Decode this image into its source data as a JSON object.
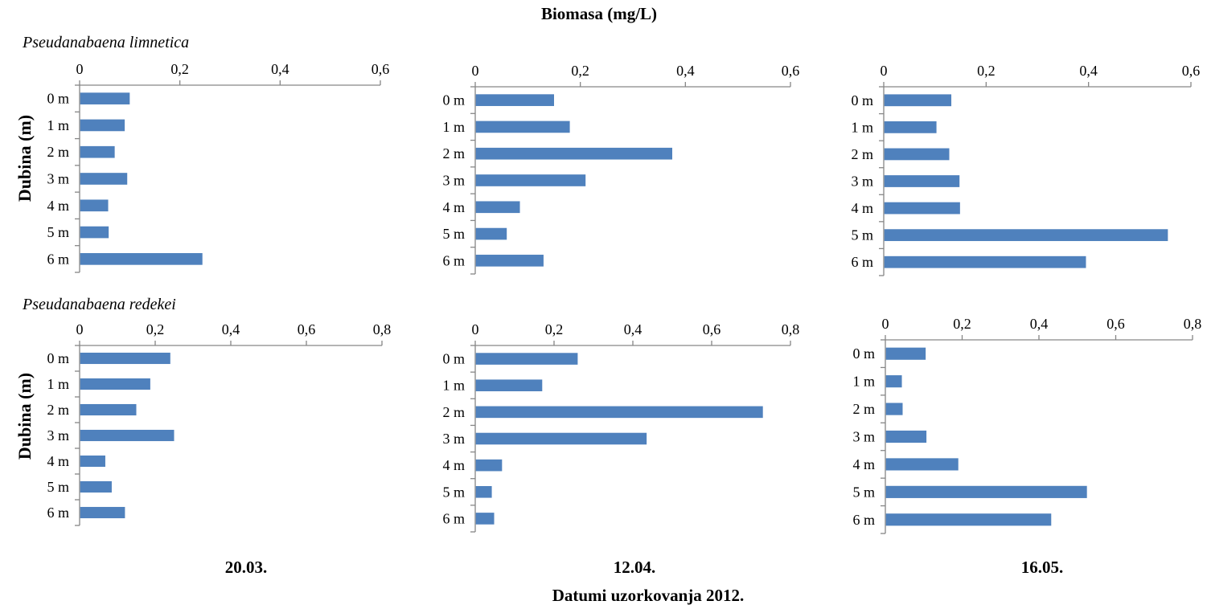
{
  "figure": {
    "top_title": "Biomasa (mg/L)",
    "y_axis_title": "Dubina (m)",
    "bottom_title": "Datumi uzorkovanja 2012.",
    "bar_color": "#4F81BD",
    "axis_color": "#868686"
  },
  "rows": [
    {
      "species": "Pseudanabaena limnetica"
    },
    {
      "species": "Pseudanabaena redekei"
    }
  ],
  "dates": [
    "20.03.",
    "12.04.",
    "16.05."
  ],
  "chart_data": [
    {
      "type": "bar",
      "orientation": "horizontal",
      "row": 0,
      "col": 0,
      "categories": [
        "0 m",
        "1 m",
        "2 m",
        "3 m",
        "4 m",
        "5 m",
        "6 m"
      ],
      "values": [
        0.1,
        0.09,
        0.07,
        0.095,
        0.057,
        0.058,
        0.245
      ],
      "xlim": [
        0,
        0.6
      ],
      "ticks": [
        "0",
        "0,2",
        "0,4",
        "0,6"
      ]
    },
    {
      "type": "bar",
      "orientation": "horizontal",
      "row": 0,
      "col": 1,
      "categories": [
        "0 m",
        "1 m",
        "2 m",
        "3 m",
        "4 m",
        "5 m",
        "6 m"
      ],
      "values": [
        0.15,
        0.18,
        0.375,
        0.21,
        0.085,
        0.06,
        0.13
      ],
      "xlim": [
        0,
        0.6
      ],
      "ticks": [
        "0",
        "0,2",
        "0,4",
        "0,6"
      ]
    },
    {
      "type": "bar",
      "orientation": "horizontal",
      "row": 0,
      "col": 2,
      "categories": [
        "0 m",
        "1 m",
        "2 m",
        "3 m",
        "4 m",
        "5 m",
        "6 m"
      ],
      "values": [
        0.132,
        0.103,
        0.128,
        0.148,
        0.149,
        0.555,
        0.395
      ],
      "xlim": [
        0,
        0.6
      ],
      "ticks": [
        "0",
        "0,2",
        "0,4",
        "0,6"
      ]
    },
    {
      "type": "bar",
      "orientation": "horizontal",
      "row": 1,
      "col": 0,
      "categories": [
        "0 m",
        "1 m",
        "2 m",
        "3 m",
        "4 m",
        "5 m",
        "6 m"
      ],
      "values": [
        0.24,
        0.187,
        0.15,
        0.25,
        0.068,
        0.085,
        0.12
      ],
      "xlim": [
        0,
        0.8
      ],
      "ticks": [
        "0",
        "0,2",
        "0,4",
        "0,6",
        "0,8"
      ]
    },
    {
      "type": "bar",
      "orientation": "horizontal",
      "row": 1,
      "col": 1,
      "categories": [
        "0 m",
        "1 m",
        "2 m",
        "3 m",
        "4 m",
        "5 m",
        "6 m"
      ],
      "values": [
        0.26,
        0.17,
        0.73,
        0.435,
        0.068,
        0.042,
        0.048
      ],
      "xlim": [
        0,
        0.8
      ],
      "ticks": [
        "0",
        "0,2",
        "0,4",
        "0,6",
        "0,8"
      ]
    },
    {
      "type": "bar",
      "orientation": "horizontal",
      "row": 1,
      "col": 2,
      "categories": [
        "0 m",
        "1 m",
        "2 m",
        "3 m",
        "4 m",
        "5 m",
        "6 m"
      ],
      "values": [
        0.105,
        0.043,
        0.045,
        0.107,
        0.19,
        0.525,
        0.432
      ],
      "xlim": [
        0,
        0.8
      ],
      "ticks": [
        "0",
        "0,2",
        "0,4",
        "0,6",
        "0,8"
      ]
    }
  ]
}
